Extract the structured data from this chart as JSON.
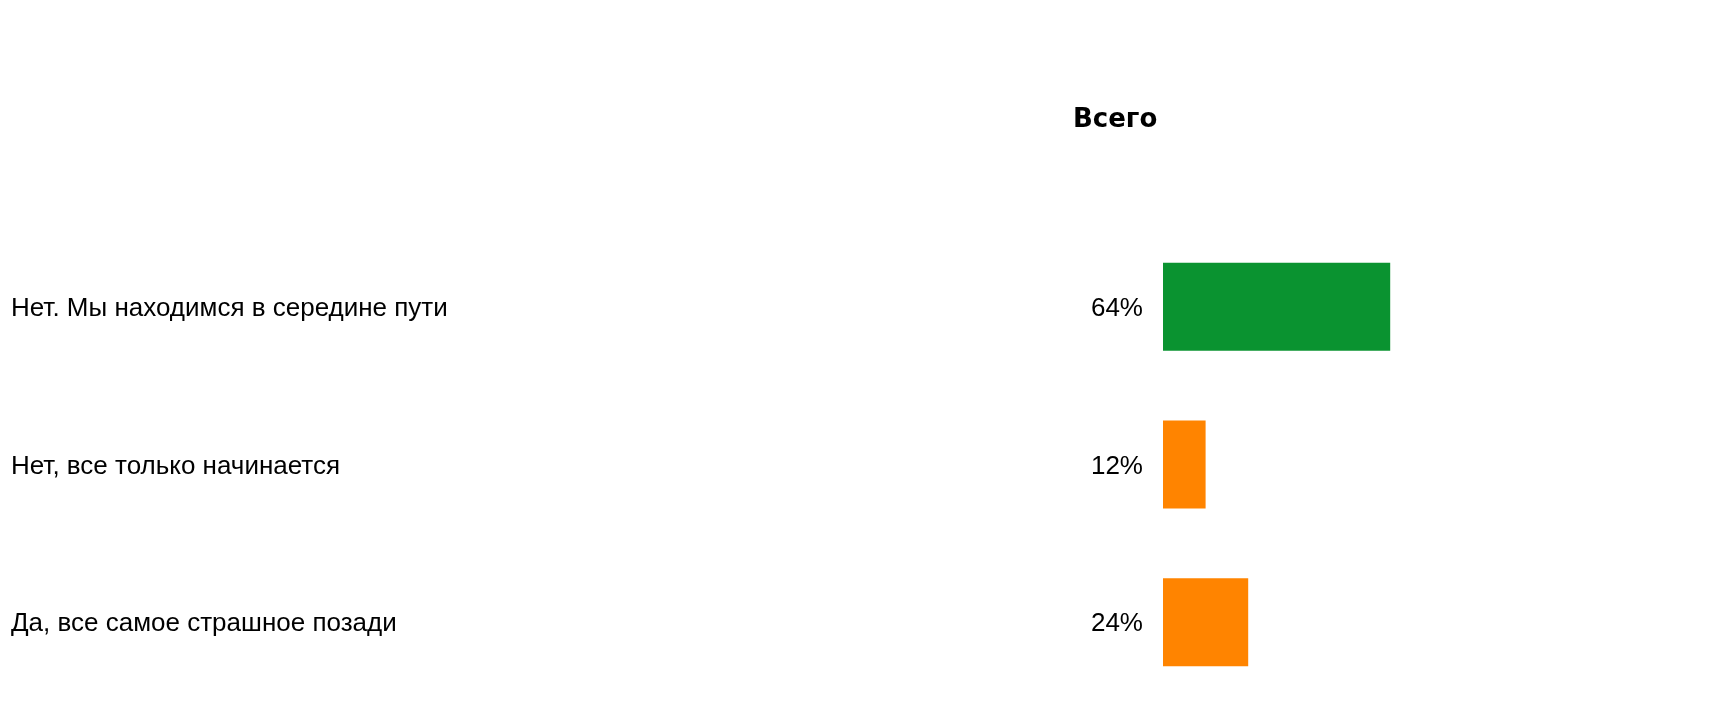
{
  "chart_data": {
    "type": "bar",
    "orientation": "horizontal",
    "title": "Всего",
    "categories": [
      "Нет. Мы находимся в середине пути",
      "Нет, все только начинается",
      "Да, все самое страшное позади"
    ],
    "values": [
      64,
      12,
      24
    ],
    "colors": [
      "#0a9330",
      "#ff8400",
      "#ff8400"
    ],
    "value_labels": [
      "64%",
      "12%",
      "24%"
    ]
  }
}
